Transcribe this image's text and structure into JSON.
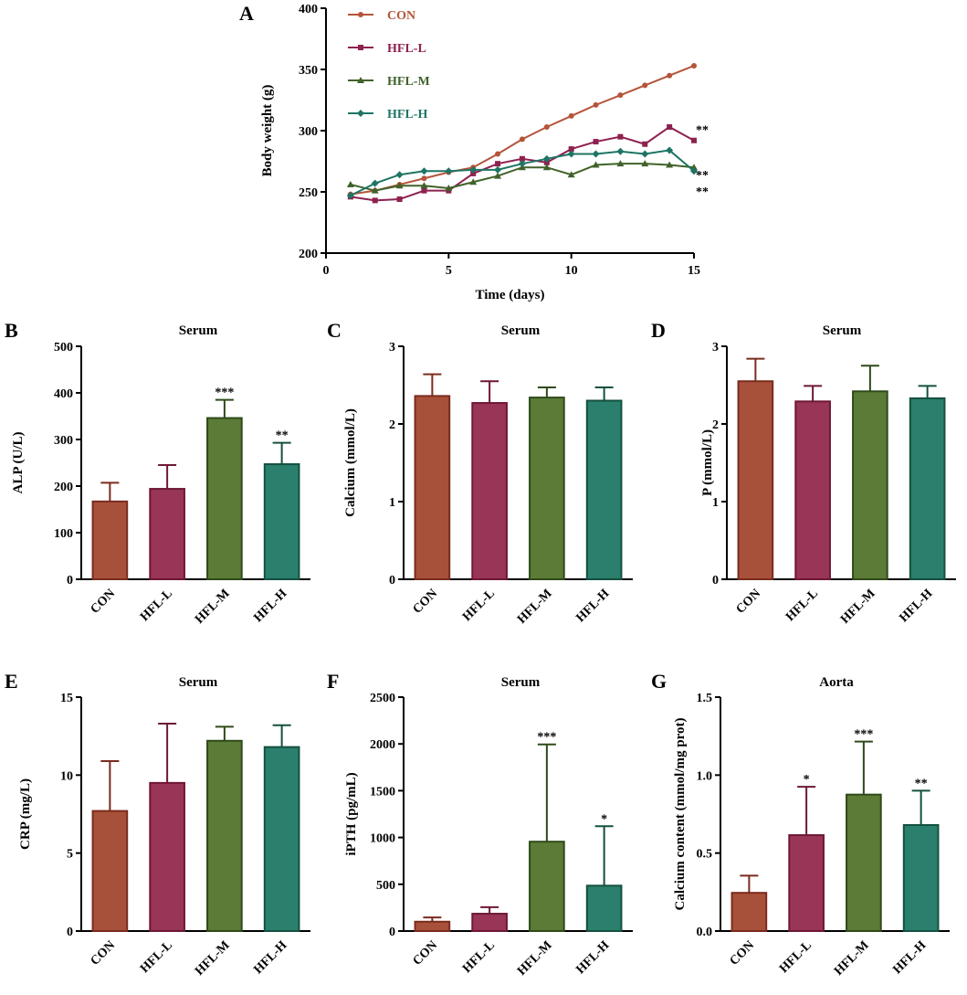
{
  "chart_data": [
    {
      "panel": "A",
      "type": "line",
      "title": "",
      "xlabel": "Time (days)",
      "ylabel": "Body weight (g)",
      "xlim": [
        0,
        15
      ],
      "ylim": [
        200,
        400
      ],
      "xticks": [
        0,
        5,
        10,
        15
      ],
      "yticks": [
        200,
        250,
        300,
        350,
        400
      ],
      "legend_position": "top-left",
      "x": [
        1,
        2,
        3,
        4,
        5,
        6,
        7,
        8,
        9,
        10,
        11,
        12,
        13,
        14,
        15
      ],
      "series": [
        {
          "name": "CON",
          "marker": "circle",
          "color": "#b5543a",
          "values": [
            248,
            251,
            256,
            261,
            266,
            270,
            281,
            293,
            303,
            312,
            321,
            329,
            337,
            345,
            353
          ]
        },
        {
          "name": "HFL-L",
          "marker": "square",
          "color": "#8e2150",
          "values": [
            246,
            243,
            244,
            251,
            251,
            265,
            273,
            277,
            274,
            285,
            291,
            295,
            289,
            303,
            292
          ],
          "sig": "**"
        },
        {
          "name": "HFL-M",
          "marker": "triangle",
          "color": "#41622a",
          "values": [
            256,
            251,
            255,
            255,
            253,
            258,
            263,
            270,
            270,
            264,
            272,
            273,
            273,
            272,
            270
          ],
          "sig": "**"
        },
        {
          "name": "HFL-H",
          "marker": "diamond",
          "color": "#1e7564",
          "values": [
            247,
            257,
            264,
            267,
            267,
            268,
            268,
            273,
            277,
            281,
            281,
            283,
            281,
            284,
            267
          ],
          "sig": "**"
        }
      ]
    },
    {
      "panel": "B",
      "type": "bar",
      "title": "Serum",
      "xlabel": "",
      "ylabel": "ALP (U/L)",
      "ylim": [
        0,
        500
      ],
      "yticks": [
        0,
        100,
        200,
        300,
        400,
        500
      ],
      "categories": [
        "CON",
        "HFL-L",
        "HFL-M",
        "HFL-H"
      ],
      "values": [
        167,
        194,
        346,
        247
      ],
      "errors": [
        40,
        51,
        39,
        46
      ],
      "sig": [
        "",
        "",
        "***",
        "**"
      ]
    },
    {
      "panel": "C",
      "type": "bar",
      "title": "Serum",
      "xlabel": "",
      "ylabel": "Calcium (mmol/L)",
      "ylim": [
        0,
        3
      ],
      "yticks": [
        0,
        1,
        2,
        3
      ],
      "categories": [
        "CON",
        "HFL-L",
        "HFL-M",
        "HFL-H"
      ],
      "values": [
        2.36,
        2.27,
        2.34,
        2.3
      ],
      "errors": [
        0.28,
        0.28,
        0.13,
        0.17
      ],
      "sig": [
        "",
        "",
        "",
        ""
      ]
    },
    {
      "panel": "D",
      "type": "bar",
      "title": "Serum",
      "xlabel": "",
      "ylabel": "P (mmol/L)",
      "ylim": [
        0,
        3
      ],
      "yticks": [
        0,
        1,
        2,
        3
      ],
      "categories": [
        "CON",
        "HFL-L",
        "HFL-M",
        "HFL-H"
      ],
      "values": [
        2.55,
        2.29,
        2.42,
        2.33
      ],
      "errors": [
        0.29,
        0.2,
        0.33,
        0.16
      ],
      "sig": [
        "",
        "",
        "",
        ""
      ]
    },
    {
      "panel": "E",
      "type": "bar",
      "title": "Serum",
      "xlabel": "",
      "ylabel": "CRP (mg/L)",
      "ylim": [
        0,
        15
      ],
      "yticks": [
        0,
        5,
        10,
        15
      ],
      "categories": [
        "CON",
        "HFL-L",
        "HFL-M",
        "HFL-H"
      ],
      "values": [
        7.7,
        9.5,
        12.2,
        11.8
      ],
      "errors": [
        3.2,
        3.8,
        0.9,
        1.4
      ],
      "sig": [
        "",
        "",
        "",
        ""
      ]
    },
    {
      "panel": "F",
      "type": "bar",
      "title": "Serum",
      "xlabel": "",
      "ylabel": "iPTH (pg/mL)",
      "ylim": [
        0,
        2500
      ],
      "yticks": [
        0,
        500,
        1000,
        1500,
        2000,
        2500
      ],
      "categories": [
        "CON",
        "HFL-L",
        "HFL-M",
        "HFL-H"
      ],
      "values": [
        100,
        185,
        955,
        485
      ],
      "errors": [
        45,
        70,
        1040,
        635
      ],
      "sig": [
        "",
        "",
        "***",
        "*"
      ]
    },
    {
      "panel": "G",
      "type": "bar",
      "title": "Aorta",
      "xlabel": "",
      "ylabel": "Calcium content (mmol/mg prot)",
      "ylim": [
        0,
        1.5
      ],
      "yticks": [
        0.0,
        0.5,
        1.0,
        1.5
      ],
      "ytick_labels": [
        "0.0",
        "0.5",
        "1.0",
        "1.5"
      ],
      "categories": [
        "CON",
        "HFL-L",
        "HFL-M",
        "HFL-H"
      ],
      "values": [
        0.245,
        0.615,
        0.875,
        0.68
      ],
      "errors": [
        0.11,
        0.31,
        0.34,
        0.22
      ],
      "sig": [
        "",
        "*",
        "***",
        "**"
      ]
    }
  ],
  "colors": {
    "fill": [
      "#a8513a",
      "#993658",
      "#5b7b37",
      "#2a806c"
    ],
    "edge": [
      "#7a2b1e",
      "#6e1736",
      "#2f4a19",
      "#14503f"
    ],
    "line": [
      "#b5543a",
      "#8e2150",
      "#41622a",
      "#1e7564"
    ]
  }
}
